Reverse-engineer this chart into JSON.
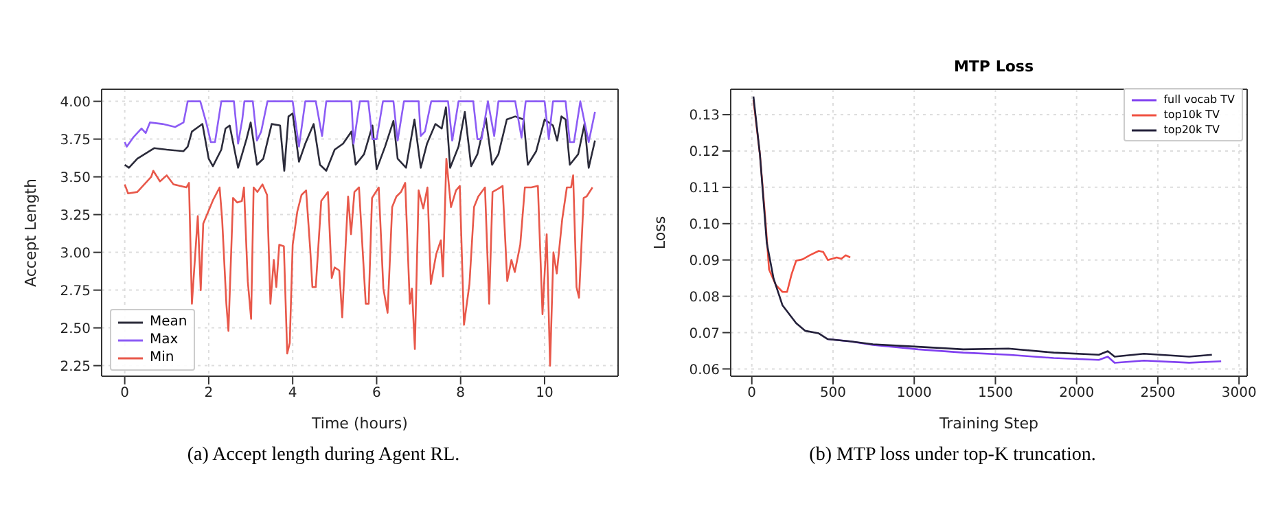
{
  "chart_data": [
    {
      "type": "line",
      "xlabel": "Time (hours)",
      "ylabel": "Accept Length",
      "xlim": [
        -0.55,
        11.75
      ],
      "ylim": [
        2.18,
        4.08
      ],
      "xticks": [
        0,
        2,
        4,
        6,
        8,
        10
      ],
      "yticks": [
        {
          "value": 2.25,
          "label": "2.25"
        },
        {
          "value": 2.5,
          "label": "2.50"
        },
        {
          "value": 2.75,
          "label": "2.75"
        },
        {
          "value": 3,
          "label": "3.00"
        },
        {
          "value": 3.25,
          "label": "3.25"
        },
        {
          "value": 3.5,
          "label": "3.50"
        },
        {
          "value": 3.75,
          "label": "3.75"
        },
        {
          "value": 4,
          "label": "4.00"
        }
      ],
      "grid": true,
      "legend": "bottom left",
      "annotations": [
        "(a) Accept length during Agent RL."
      ],
      "series": [
        {
          "name": "Mean",
          "color": "#2b2b3a",
          "x": [
            0,
            0.1,
            0.3,
            0.7,
            1.0,
            1.4,
            1.5,
            1.6,
            1.75,
            1.85,
            2.0,
            2.1,
            2.3,
            2.4,
            2.5,
            2.7,
            2.9,
            3.0,
            3.15,
            3.3,
            3.5,
            3.7,
            3.8,
            3.9,
            4.0,
            4.15,
            4.3,
            4.5,
            4.65,
            4.8,
            5.0,
            5.2,
            5.4,
            5.5,
            5.7,
            5.9,
            6.0,
            6.2,
            6.4,
            6.5,
            6.7,
            6.9,
            7.05,
            7.2,
            7.4,
            7.55,
            7.65,
            7.75,
            7.95,
            8.1,
            8.25,
            8.4,
            8.6,
            8.75,
            8.9,
            9.1,
            9.3,
            9.5,
            9.6,
            9.8,
            10.0,
            10.2,
            10.3,
            10.4,
            10.5,
            10.6,
            10.8,
            10.95,
            11.05,
            11.2
          ],
          "values": [
            3.58,
            3.56,
            3.62,
            3.69,
            3.68,
            3.67,
            3.7,
            3.8,
            3.83,
            3.85,
            3.62,
            3.57,
            3.68,
            3.82,
            3.84,
            3.56,
            3.75,
            3.86,
            3.58,
            3.62,
            3.85,
            3.84,
            3.54,
            3.9,
            3.92,
            3.6,
            3.72,
            3.85,
            3.58,
            3.54,
            3.68,
            3.72,
            3.8,
            3.58,
            3.65,
            3.84,
            3.55,
            3.7,
            3.87,
            3.62,
            3.56,
            3.88,
            3.56,
            3.72,
            3.85,
            3.82,
            3.96,
            3.56,
            3.7,
            3.93,
            3.57,
            3.65,
            3.89,
            3.58,
            3.65,
            3.88,
            3.9,
            3.88,
            3.58,
            3.67,
            3.88,
            3.84,
            3.74,
            3.9,
            3.88,
            3.58,
            3.65,
            3.85,
            3.56,
            3.74
          ]
        },
        {
          "name": "Max",
          "color": "#8c5cf5",
          "x": [
            0,
            0.05,
            0.2,
            0.4,
            0.5,
            0.6,
            0.9,
            1.2,
            1.4,
            1.5,
            1.8,
            1.95,
            2.05,
            2.15,
            2.3,
            2.6,
            2.7,
            2.8,
            2.85,
            3.05,
            3.15,
            3.25,
            3.4,
            4.0,
            4.15,
            4.3,
            4.55,
            4.7,
            4.8,
            5.4,
            5.45,
            5.6,
            5.8,
            5.9,
            6.0,
            6.15,
            6.4,
            6.5,
            6.65,
            7.0,
            7.05,
            7.15,
            7.3,
            7.7,
            7.8,
            7.95,
            8.3,
            8.4,
            8.5,
            8.65,
            8.8,
            8.9,
            9.3,
            9.45,
            9.55,
            10.0,
            10.1,
            10.2,
            10.5,
            10.6,
            10.7,
            10.85,
            11.05,
            11.2
          ],
          "values": [
            3.73,
            3.7,
            3.76,
            3.82,
            3.79,
            3.86,
            3.85,
            3.83,
            3.86,
            4.0,
            4.0,
            3.85,
            3.73,
            3.73,
            4.0,
            4.0,
            3.72,
            3.88,
            4.0,
            4.0,
            3.74,
            3.8,
            4.0,
            4.0,
            3.7,
            4.0,
            4.0,
            3.77,
            4.0,
            4.0,
            3.72,
            4.0,
            4.0,
            3.75,
            3.75,
            4.0,
            4.0,
            3.74,
            4.0,
            4.0,
            3.77,
            3.8,
            4.0,
            4.0,
            3.74,
            4.0,
            4.0,
            3.75,
            3.75,
            4.0,
            3.77,
            4.0,
            4.0,
            3.76,
            4.0,
            4.0,
            3.75,
            4.0,
            4.0,
            3.73,
            3.73,
            4.0,
            3.73,
            3.93
          ]
        },
        {
          "name": "Min",
          "color": "#e8584a",
          "x": [
            0,
            0.08,
            0.3,
            0.63,
            0.68,
            0.84,
            1.0,
            1.16,
            1.47,
            1.53,
            1.6,
            1.74,
            1.81,
            1.87,
            2.11,
            2.26,
            2.32,
            2.42,
            2.47,
            2.58,
            2.68,
            2.79,
            2.84,
            2.93,
            3.01,
            3.07,
            3.16,
            3.28,
            3.39,
            3.47,
            3.55,
            3.61,
            3.68,
            3.79,
            3.87,
            3.93,
            4.0,
            4.11,
            4.21,
            4.32,
            4.42,
            4.47,
            4.55,
            4.68,
            4.84,
            4.93,
            5.0,
            5.11,
            5.18,
            5.26,
            5.32,
            5.39,
            5.47,
            5.58,
            5.74,
            5.81,
            5.89,
            6.05,
            6.16,
            6.26,
            6.37,
            6.47,
            6.58,
            6.68,
            6.79,
            6.84,
            6.91,
            7.0,
            7.11,
            7.21,
            7.29,
            7.42,
            7.53,
            7.58,
            7.66,
            7.77,
            7.89,
            7.98,
            8.08,
            8.21,
            8.32,
            8.42,
            8.58,
            8.68,
            8.76,
            8.89,
            9.0,
            9.11,
            9.21,
            9.29,
            9.42,
            9.53,
            9.68,
            9.84,
            9.95,
            10.05,
            10.13,
            10.21,
            10.29,
            10.42,
            10.53,
            10.63,
            10.68,
            10.76,
            10.82,
            10.93,
            11.0,
            11.14
          ],
          "values": [
            3.45,
            3.39,
            3.4,
            3.5,
            3.54,
            3.47,
            3.51,
            3.45,
            3.43,
            3.46,
            2.66,
            3.24,
            2.75,
            3.19,
            3.35,
            3.43,
            3.22,
            2.66,
            2.48,
            3.36,
            3.33,
            3.34,
            3.43,
            2.81,
            2.56,
            3.43,
            3.4,
            3.45,
            3.38,
            2.66,
            2.95,
            2.77,
            3.05,
            3.04,
            2.33,
            2.4,
            3.05,
            3.27,
            3.38,
            3.41,
            3.01,
            2.77,
            2.77,
            3.34,
            3.4,
            2.83,
            2.9,
            2.88,
            2.57,
            3.04,
            3.37,
            3.12,
            3.4,
            3.43,
            2.66,
            2.66,
            3.36,
            3.43,
            2.76,
            2.6,
            3.3,
            3.37,
            3.4,
            3.46,
            2.66,
            2.76,
            2.36,
            3.41,
            3.29,
            3.43,
            2.79,
            2.99,
            3.08,
            2.84,
            3.62,
            3.3,
            3.41,
            3.44,
            2.52,
            2.79,
            3.3,
            3.37,
            3.43,
            2.66,
            3.4,
            3.42,
            3.44,
            2.81,
            2.95,
            2.87,
            3.05,
            3.43,
            3.43,
            3.44,
            2.59,
            3.12,
            2.25,
            3.0,
            2.86,
            3.22,
            3.43,
            3.43,
            3.51,
            2.77,
            2.7,
            3.36,
            3.37,
            3.43
          ]
        }
      ]
    },
    {
      "type": "line",
      "title": "MTP Loss",
      "xlabel": "Training Step",
      "ylabel": "Loss",
      "xlim": [
        -130,
        3050
      ],
      "ylim": [
        0.058,
        0.137
      ],
      "xticks": [
        0,
        500,
        1000,
        1500,
        2000,
        2500,
        3000
      ],
      "yticks": [
        0.06,
        0.07,
        0.08,
        0.09,
        {
          "value": 0.1,
          "label": "0.10"
        },
        0.11,
        0.12,
        0.13
      ],
      "grid": true,
      "legend": "top right",
      "annotations": [
        "(b) MTP loss under top-K truncation."
      ],
      "series": [
        {
          "name": "full vocab TV",
          "color": "#8040f0",
          "x": [
            468,
            606,
            746,
            1024,
            1302,
            1580,
            1859,
            2137,
            2192,
            2234,
            2415,
            2693,
            2890
          ],
          "values": [
            0.0682,
            0.0676,
            0.0666,
            0.0654,
            0.0645,
            0.0639,
            0.063,
            0.0625,
            0.0634,
            0.0617,
            0.0623,
            0.0617,
            0.0621
          ]
        },
        {
          "name": "top10k TV",
          "color": "#f05040",
          "x": [
            10,
            50,
            84,
            106,
            148,
            189,
            217,
            245,
            273,
            314,
            356,
            412,
            440,
            468,
            523,
            551,
            579,
            606
          ],
          "values": [
            0.134,
            0.119,
            0.1009,
            0.0874,
            0.0831,
            0.0812,
            0.0812,
            0.0861,
            0.0898,
            0.0902,
            0.0913,
            0.0925,
            0.0922,
            0.09,
            0.0907,
            0.0903,
            0.0913,
            0.0907
          ]
        },
        {
          "name": "top20k TV",
          "color": "#23203a",
          "x": [
            10,
            50,
            92,
            134,
            189,
            273,
            328,
            412,
            468,
            606,
            746,
            1024,
            1302,
            1580,
            1859,
            2137,
            2192,
            2234,
            2415,
            2693,
            2833
          ],
          "values": [
            0.135,
            0.119,
            0.0947,
            0.0849,
            0.0775,
            0.0726,
            0.0705,
            0.0698,
            0.0682,
            0.0676,
            0.0668,
            0.0661,
            0.0654,
            0.0656,
            0.0645,
            0.0639,
            0.0649,
            0.0634,
            0.0642,
            0.0634,
            0.0639
          ]
        }
      ]
    }
  ]
}
